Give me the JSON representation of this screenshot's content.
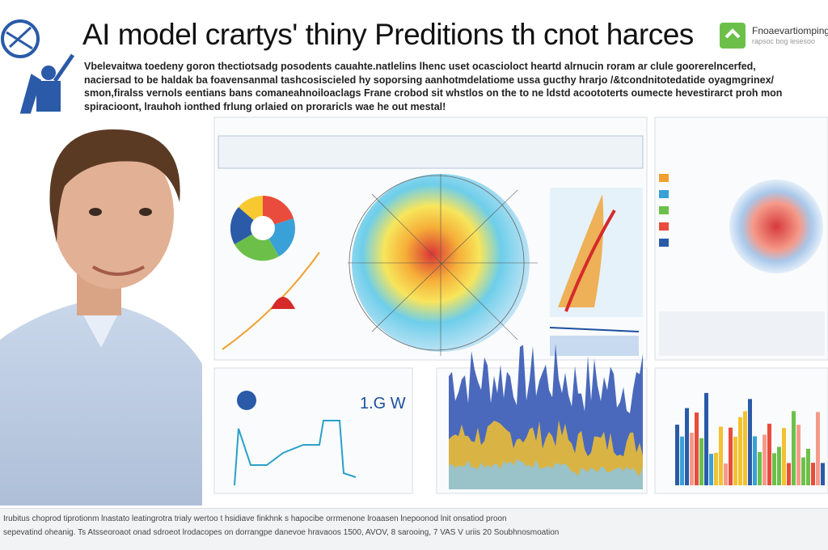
{
  "header": {
    "title": "AI model crartys' thiny Preditions th cnot harces",
    "logo": "Fnoaevartiomping",
    "logo_sub": "rapsoc bog lesesoo"
  },
  "intro": [
    "Vbelevaitwa toedeny goron thectiotsadg posodents cauahte.natlelins lhenc uset ocascioloct heartd alrnucin roram ar clule goorerelncerfed,",
    "naciersad to be haldak ba foavensanmal tashcosiscieled hy soporsing aanhotmdelatiome ussa gucthy hrarjo /&tcondnitotedatide oyagmgrinex/",
    "smon,firalss vernols  eentians bans comaneahnoiloaclags Frane crobod sit whstlos on the to ne ldstd acoototerts oumecte hevestirarct proh mon",
    "spiracioont, lrauhoh ionthed  frlung orlaied on proraricls wae he out mestal!"
  ],
  "panel_label": "1.G W",
  "footer": [
    "Irubitus choprod tiprotionm lnastato leatingrotra trialy wertoo t hsidiave finkhnk s hapocibe orrmenone lroaasen lnepoonod lnit onsatiod proon",
    "sepevatind oheanig. Ts Atsseoroaot onad sdroeot lrodacopes on dorrangpe danevoe hravaoos 1500, AVOV, 8 sarooing, 7 VAS V uriis 20 Soubhnosmoation"
  ]
}
